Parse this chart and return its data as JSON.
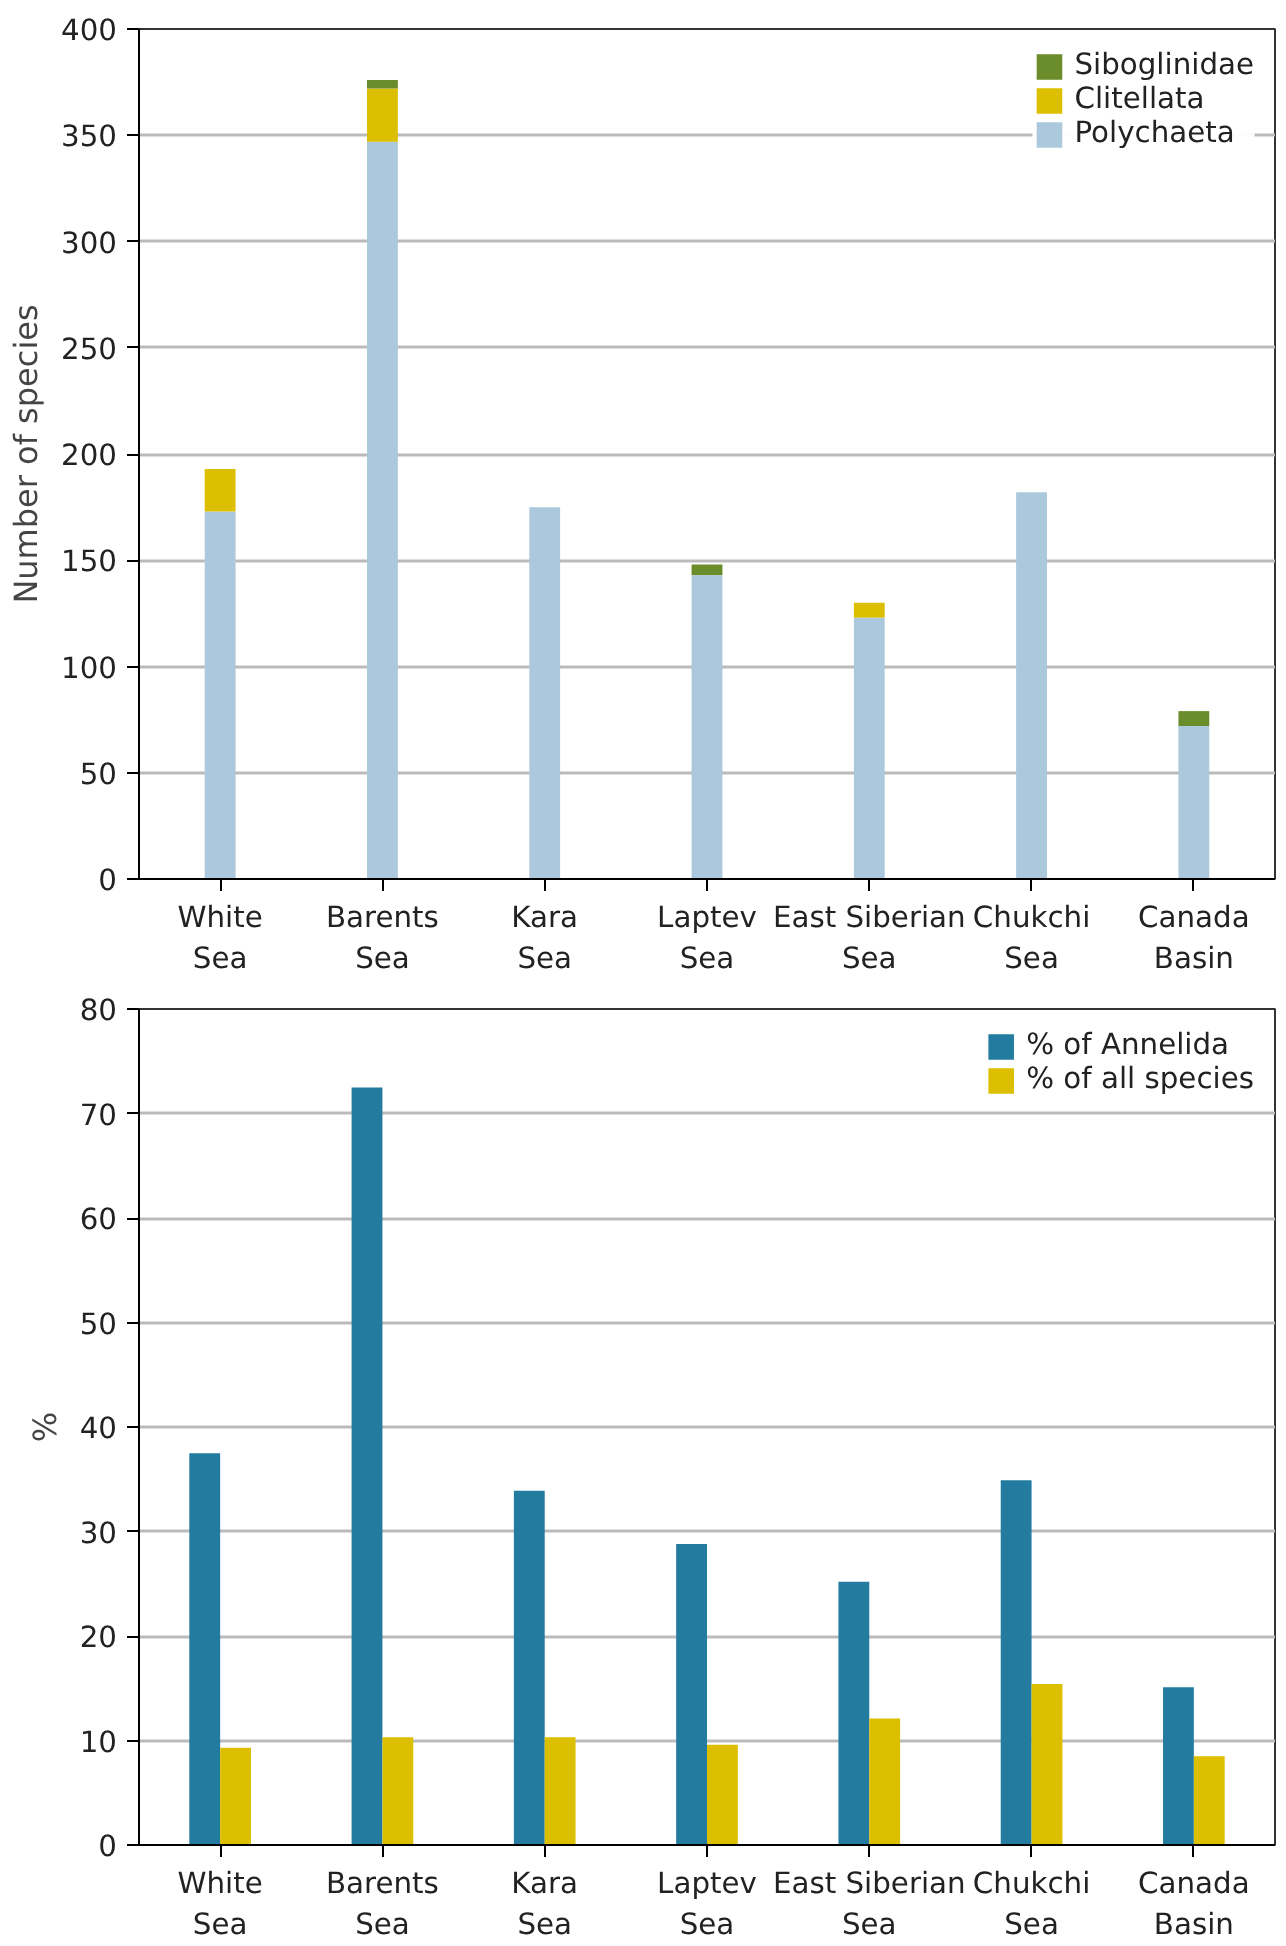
{
  "chart_data": [
    {
      "type": "bar",
      "stacked": true,
      "ylabel": "Number of species",
      "categories": [
        "White\nSea",
        "Barents\nSea",
        "Kara\nSea",
        "Laptev\nSea",
        "East Siberian\nSea",
        "Chukchi\nSea",
        "Canada\nBasin"
      ],
      "series": [
        {
          "name": "Polychaeta",
          "color": "#abc8dc",
          "values": [
            173,
            347,
            175,
            143,
            123,
            182,
            72
          ]
        },
        {
          "name": "Clitellata",
          "color": "#dbbf00",
          "values": [
            20,
            25,
            0,
            0,
            7,
            0,
            0
          ]
        },
        {
          "name": "Siboglinidae",
          "color": "#6a8c2b",
          "values": [
            0,
            4,
            0,
            5,
            0,
            0,
            7
          ]
        }
      ],
      "ylim": [
        0,
        400
      ],
      "yticks": [
        0,
        50,
        100,
        150,
        200,
        250,
        300,
        350,
        400
      ],
      "grid": "y",
      "legend": "top right"
    },
    {
      "type": "bar",
      "ylabel": "%",
      "categories": [
        "White\nSea",
        "Barents\nSea",
        "Kara\nSea",
        "Laptev\nSea",
        "East Siberian\nSea",
        "Chukchi\nSea",
        "Canada\nBasin"
      ],
      "series": [
        {
          "name": "% of Annelida",
          "color": "#237ca0",
          "values": [
            37.5,
            72.5,
            33.9,
            28.8,
            25.2,
            34.9,
            15.1
          ]
        },
        {
          "name": "% of all species",
          "color": "#dbbf00",
          "values": [
            9.3,
            10.3,
            10.3,
            9.6,
            12.1,
            15.4,
            8.5
          ]
        }
      ],
      "ylim": [
        0,
        80
      ],
      "yticks": [
        0,
        10,
        20,
        30,
        40,
        50,
        60,
        70,
        80
      ],
      "grid": "y",
      "legend": "top right"
    }
  ]
}
